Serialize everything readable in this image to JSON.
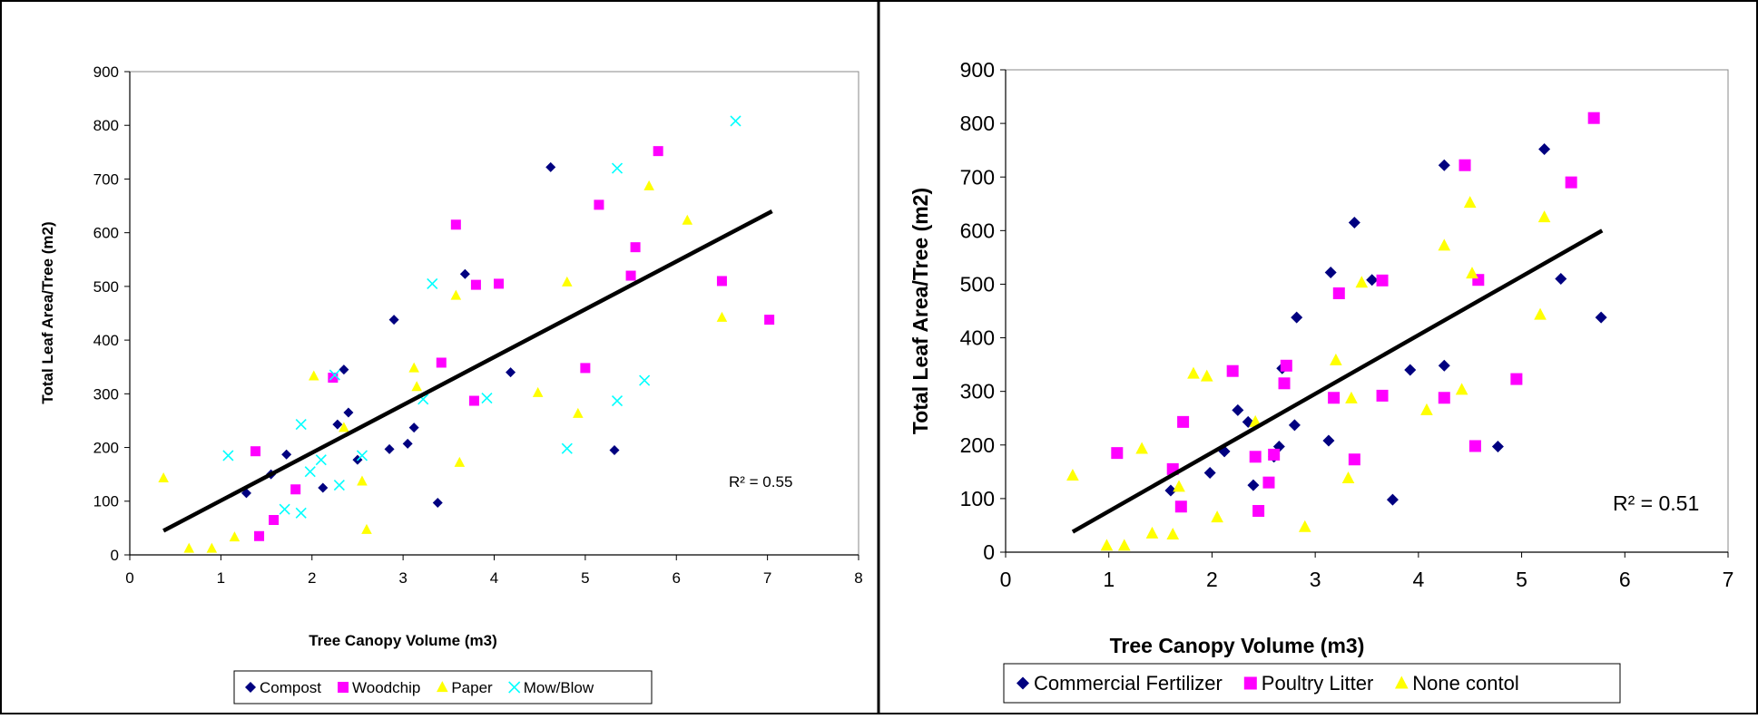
{
  "chart_data": [
    {
      "type": "scatter",
      "title": "",
      "xlabel": "Tree Canopy Volume (m3)",
      "ylabel": "Total Leaf Area/Tree (m2)",
      "xlim": [
        0,
        8
      ],
      "ylim": [
        0,
        900
      ],
      "xticks": [
        "0",
        "1",
        "2",
        "3",
        "4",
        "5",
        "6",
        "7",
        "8"
      ],
      "yticks": [
        "0",
        "100",
        "200",
        "300",
        "400",
        "500",
        "600",
        "700",
        "800",
        "900"
      ],
      "grid": false,
      "legend_position": "bottom",
      "annotation": "R² = 0.55",
      "trendline": {
        "x": [
          0.37,
          7.05
        ],
        "y": [
          45,
          640
        ]
      },
      "series": [
        {
          "name": "Compost",
          "marker": "diamond",
          "color": "#000080",
          "points": [
            [
              1.28,
              115
            ],
            [
              1.55,
              150
            ],
            [
              1.72,
              187
            ],
            [
              2.12,
              125
            ],
            [
              2.28,
              243
            ],
            [
              2.35,
              345
            ],
            [
              2.4,
              265
            ],
            [
              2.5,
              177
            ],
            [
              2.85,
              197
            ],
            [
              2.9,
              438
            ],
            [
              3.05,
              207
            ],
            [
              3.12,
              237
            ],
            [
              3.38,
              97
            ],
            [
              3.68,
              523
            ],
            [
              4.18,
              340
            ],
            [
              4.62,
              722
            ],
            [
              5.32,
              195
            ]
          ]
        },
        {
          "name": "Woodchip",
          "marker": "square",
          "color": "#FF00FF",
          "points": [
            [
              1.38,
              193
            ],
            [
              1.42,
              35
            ],
            [
              1.58,
              65
            ],
            [
              1.82,
              122
            ],
            [
              2.23,
              330
            ],
            [
              3.42,
              358
            ],
            [
              3.58,
              615
            ],
            [
              3.78,
              287
            ],
            [
              3.8,
              503
            ],
            [
              4.05,
              505
            ],
            [
              5.0,
              348
            ],
            [
              5.15,
              652
            ],
            [
              5.5,
              520
            ],
            [
              5.55,
              573
            ],
            [
              5.8,
              752
            ],
            [
              6.5,
              510
            ],
            [
              7.02,
              438
            ]
          ]
        },
        {
          "name": "Paper",
          "marker": "triangle",
          "color": "#FFFF00",
          "points": [
            [
              0.37,
              143
            ],
            [
              0.65,
              12
            ],
            [
              0.9,
              12
            ],
            [
              1.15,
              33
            ],
            [
              2.02,
              333
            ],
            [
              2.35,
              237
            ],
            [
              2.55,
              137
            ],
            [
              2.6,
              47
            ],
            [
              3.12,
              348
            ],
            [
              3.15,
              313
            ],
            [
              3.58,
              483
            ],
            [
              3.62,
              172
            ],
            [
              4.48,
              302
            ],
            [
              4.8,
              508
            ],
            [
              4.92,
              263
            ],
            [
              5.7,
              687
            ],
            [
              6.12,
              623
            ],
            [
              6.5,
              442
            ]
          ]
        },
        {
          "name": "Mow/Blow",
          "marker": "x",
          "color": "#00FFFF",
          "points": [
            [
              1.08,
              185
            ],
            [
              1.7,
              85
            ],
            [
              1.88,
              243
            ],
            [
              1.88,
              78
            ],
            [
              1.98,
              155
            ],
            [
              2.1,
              177
            ],
            [
              2.25,
              335
            ],
            [
              2.3,
              130
            ],
            [
              2.55,
              185
            ],
            [
              3.22,
              290
            ],
            [
              3.32,
              505
            ],
            [
              3.92,
              292
            ],
            [
              4.8,
              198
            ],
            [
              5.35,
              720
            ],
            [
              5.35,
              287
            ],
            [
              5.65,
              325
            ],
            [
              6.65,
              808
            ]
          ]
        }
      ]
    },
    {
      "type": "scatter",
      "title": "",
      "xlabel": "Tree Canopy Volume (m3)",
      "ylabel": "Total Leaf Area/Tree (m2)",
      "xlim": [
        0,
        7
      ],
      "ylim": [
        0,
        900
      ],
      "xticks": [
        "0",
        "1",
        "2",
        "3",
        "4",
        "5",
        "6",
        "7"
      ],
      "yticks": [
        "0",
        "100",
        "200",
        "300",
        "400",
        "500",
        "600",
        "700",
        "800",
        "900"
      ],
      "grid": false,
      "legend_position": "bottom",
      "annotation": "R² = 0.51",
      "trendline": {
        "x": [
          0.65,
          5.78
        ],
        "y": [
          38,
          600
        ]
      },
      "series": [
        {
          "name": "Commercial Fertilizer",
          "marker": "diamond",
          "color": "#000080",
          "points": [
            [
              1.6,
              115
            ],
            [
              1.98,
              148
            ],
            [
              2.12,
              188
            ],
            [
              2.25,
              265
            ],
            [
              2.35,
              243
            ],
            [
              2.4,
              125
            ],
            [
              2.6,
              178
            ],
            [
              2.65,
              197
            ],
            [
              2.68,
              343
            ],
            [
              2.8,
              237
            ],
            [
              2.82,
              438
            ],
            [
              3.13,
              208
            ],
            [
              3.15,
              522
            ],
            [
              3.38,
              615
            ],
            [
              3.55,
              508
            ],
            [
              3.75,
              98
            ],
            [
              3.92,
              340
            ],
            [
              4.25,
              348
            ],
            [
              4.25,
              722
            ],
            [
              4.77,
              197
            ],
            [
              5.22,
              752
            ],
            [
              5.38,
              510
            ],
            [
              5.77,
              438
            ]
          ]
        },
        {
          "name": "Poultry Litter",
          "marker": "square",
          "color": "#FF00FF",
          "points": [
            [
              1.08,
              185
            ],
            [
              1.62,
              155
            ],
            [
              1.7,
              85
            ],
            [
              1.72,
              243
            ],
            [
              2.2,
              338
            ],
            [
              2.42,
              178
            ],
            [
              2.45,
              77
            ],
            [
              2.55,
              130
            ],
            [
              2.6,
              182
            ],
            [
              2.7,
              315
            ],
            [
              2.72,
              348
            ],
            [
              3.18,
              288
            ],
            [
              3.23,
              483
            ],
            [
              3.38,
              173
            ],
            [
              3.65,
              292
            ],
            [
              3.65,
              507
            ],
            [
              4.25,
              288
            ],
            [
              4.45,
              722
            ],
            [
              4.55,
              198
            ],
            [
              4.58,
              508
            ],
            [
              4.95,
              323
            ],
            [
              5.48,
              690
            ],
            [
              5.7,
              810
            ]
          ]
        },
        {
          "name": "None contol",
          "marker": "triangle",
          "color": "#FFFF00",
          "points": [
            [
              0.65,
              143
            ],
            [
              0.98,
              12
            ],
            [
              1.15,
              12
            ],
            [
              1.32,
              193
            ],
            [
              1.42,
              35
            ],
            [
              1.62,
              33
            ],
            [
              1.68,
              122
            ],
            [
              1.82,
              333
            ],
            [
              1.95,
              328
            ],
            [
              2.05,
              65
            ],
            [
              2.42,
              243
            ],
            [
              2.9,
              47
            ],
            [
              3.2,
              358
            ],
            [
              3.32,
              138
            ],
            [
              3.35,
              287
            ],
            [
              3.45,
              503
            ],
            [
              4.08,
              265
            ],
            [
              4.25,
              572
            ],
            [
              4.42,
              303
            ],
            [
              4.5,
              652
            ],
            [
              4.52,
              520
            ],
            [
              5.18,
              443
            ],
            [
              5.22,
              625
            ]
          ]
        }
      ]
    }
  ]
}
